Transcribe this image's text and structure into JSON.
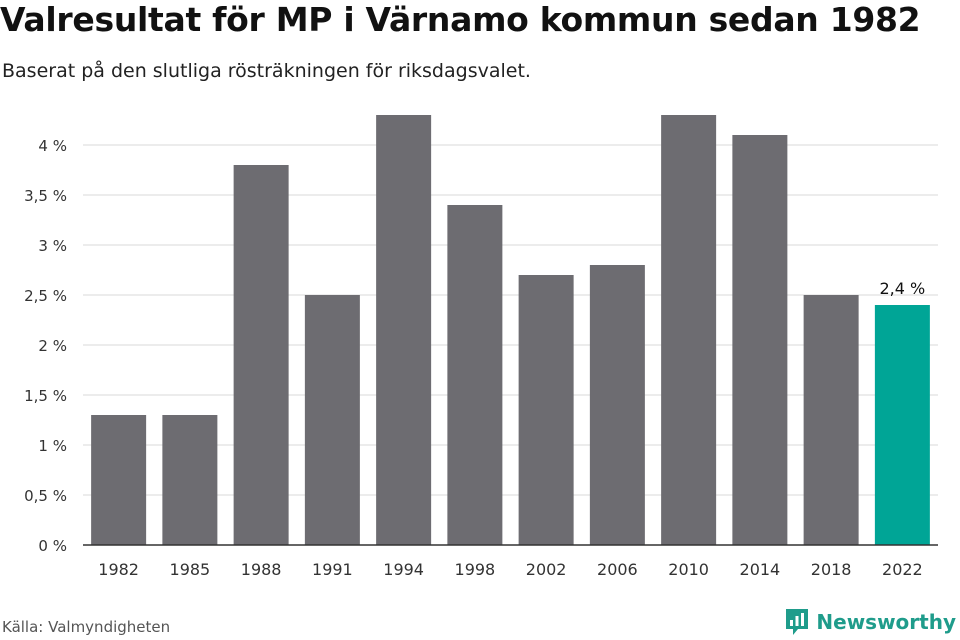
{
  "header": {
    "title": "Valresultat för MP i Värnamo kommun sedan 1982",
    "subtitle": "Baserat på den slutliga rösträkningen för riksdagsvalet."
  },
  "footer": {
    "source": "Källa: Valmyndigheten",
    "brand": "Newsworthy",
    "brand_icon": "bar-chart-icon"
  },
  "colors": {
    "bar": "#6d6c71",
    "highlight": "#00a596",
    "brand": "#1f9c8b",
    "grid": "#d9d9d9",
    "axis": "#333333"
  },
  "chart_data": {
    "type": "bar",
    "categories": [
      "1982",
      "1985",
      "1988",
      "1991",
      "1994",
      "1998",
      "2002",
      "2006",
      "2010",
      "2014",
      "2018",
      "2022"
    ],
    "values": [
      1.3,
      1.3,
      3.8,
      2.5,
      4.3,
      3.4,
      2.7,
      2.8,
      4.3,
      4.1,
      2.5,
      2.4
    ],
    "highlight_index": 11,
    "data_labels": [
      {
        "index": 11,
        "text": "2,4 %"
      }
    ],
    "yticks": [
      0,
      0.5,
      1,
      1.5,
      2,
      2.5,
      3,
      3.5,
      4
    ],
    "ytick_labels": [
      "0 %",
      "0,5 %",
      "1 %",
      "1,5 %",
      "2 %",
      "2,5 %",
      "3 %",
      "3,5 %",
      "4 %"
    ],
    "ylim": [
      0,
      4.3
    ],
    "grid": true,
    "title": "Valresultat för MP i Värnamo kommun sedan 1982",
    "xlabel": "",
    "ylabel": ""
  }
}
